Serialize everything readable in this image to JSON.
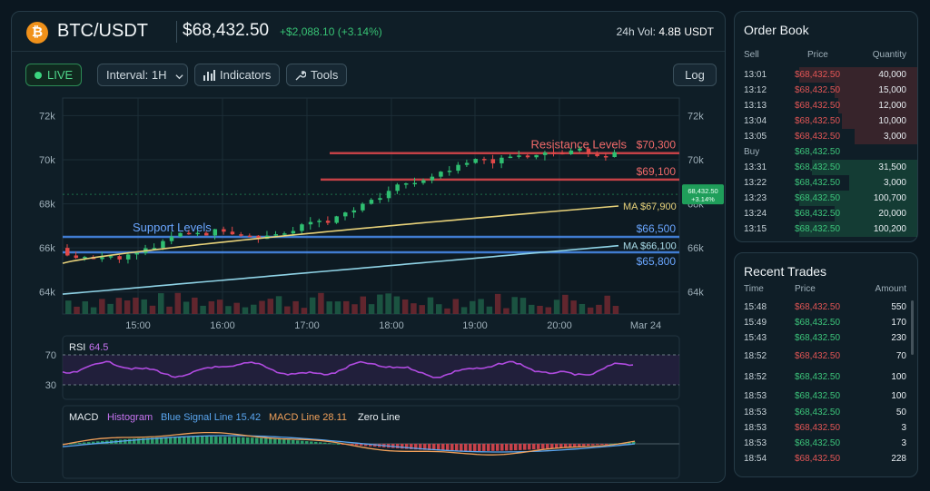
{
  "header": {
    "coin_icon": "bitcoin-icon",
    "coin_symbol": "₿",
    "pair": "BTC/USDT",
    "price": "$68,432.50",
    "change": "+$2,088.10 (+3.14%)",
    "volume_label": "24h Vol:",
    "volume_value": "4.8B USDT"
  },
  "toolbar": {
    "live": "LIVE",
    "interval": "Interval: 1H",
    "indicators": "Indicators",
    "tools": "Tools",
    "log": "Log"
  },
  "chart": {
    "yticks": [
      "72k",
      "70k",
      "68k",
      "66k",
      "64k"
    ],
    "xticks": [
      "15:00",
      "16:00",
      "17:00",
      "18:00",
      "19:00",
      "20:00",
      "Mar 24"
    ],
    "resistance_title": "Resistance Levels",
    "resistance_1": "$70,300",
    "resistance_2": "$69,100",
    "support_title": "Support Levels",
    "support_1": "$66,500",
    "support_2": "$65,800",
    "ma_fast": "MA $67,900",
    "ma_slow": "MA $66,100",
    "price_tag": "68,432.50",
    "price_tag_pct": "+3.14%"
  },
  "rsi": {
    "label": "RSI",
    "value": "64.5",
    "upper": "70",
    "lower": "30"
  },
  "macd": {
    "label": "MACD",
    "histogram": "Histogram",
    "signal": "Blue Signal Line 15.42",
    "macd_line": "MACD Line 28.11",
    "zero": "Zero Line"
  },
  "order_book": {
    "title": "Order Book",
    "col_side": "Sell",
    "col_price": "Price",
    "col_qty": "Quantity",
    "sells": [
      {
        "time": "13:01",
        "price": "$68,432.50",
        "qty": "40,000"
      },
      {
        "time": "13:12",
        "price": "$68,432.50",
        "qty": "15,000"
      },
      {
        "time": "13:13",
        "price": "$68,432.50",
        "qty": "12,000"
      },
      {
        "time": "13:04",
        "price": "$68,432.50",
        "qty": "10,000"
      },
      {
        "time": "13:05",
        "price": "$68,432.50",
        "qty": "3,000"
      }
    ],
    "buy_label": "Buy",
    "buy_label_price": "$68,432.50",
    "buys": [
      {
        "time": "13:31",
        "price": "$68,432.50",
        "qty": "31,500"
      },
      {
        "time": "13:22",
        "price": "$68,432.50",
        "qty": "3,000"
      },
      {
        "time": "13:23",
        "price": "$68,432.50",
        "qty": "100,700"
      },
      {
        "time": "13:24",
        "price": "$68,432.50",
        "qty": "20,000"
      },
      {
        "time": "13:15",
        "price": "$68,432.50",
        "qty": "100,200"
      }
    ]
  },
  "recent_trades": {
    "title": "Recent Trades",
    "col_time": "Time",
    "col_price": "Price",
    "col_amount": "Amount",
    "trades": [
      {
        "time": "15:48",
        "price": "$68,432.50",
        "amount": "550",
        "side": "sell"
      },
      {
        "time": "15:49",
        "price": "$68,432.50",
        "amount": "170",
        "side": "buy"
      },
      {
        "time": "15:43",
        "price": "$68,432.50",
        "amount": "230",
        "side": "buy"
      },
      {
        "time": "18:52",
        "price": "$68,432.50",
        "amount": "70",
        "side": "sell"
      },
      {
        "time": "18:52",
        "price": "$68,432.50",
        "amount": "100",
        "side": "buy"
      },
      {
        "time": "18:53",
        "price": "$68,432.50",
        "amount": "100",
        "side": "buy"
      },
      {
        "time": "18:53",
        "price": "$68,432.50",
        "amount": "50",
        "side": "buy"
      },
      {
        "time": "18:53",
        "price": "$68,432.50",
        "amount": "3",
        "side": "sell"
      },
      {
        "time": "18:53",
        "price": "$68,432.50",
        "amount": "3",
        "side": "buy"
      },
      {
        "time": "18:54",
        "price": "$68,432.50",
        "amount": "228",
        "side": "sell"
      }
    ]
  },
  "colors": {
    "up": "#2fbf71",
    "down": "#e04848",
    "resistance": "#e5484d",
    "support": "#4a8ef0",
    "ma_fast": "#e8d27a",
    "ma_slow": "#8fd3e6",
    "rsi": "#b04be0",
    "signal": "#5aa6f0",
    "macd_line": "#f0a05a"
  }
}
